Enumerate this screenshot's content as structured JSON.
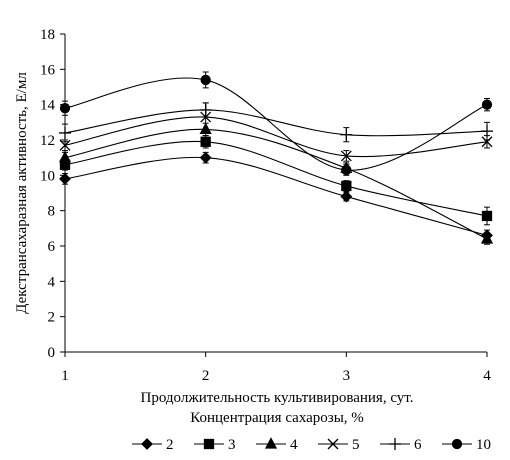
{
  "chart_data": {
    "type": "line",
    "title": "",
    "xlabel": "Продолжительность культивирования, сут.",
    "ylabel": "Декстрансахаразная активность, Е/мл",
    "legend_title": "Концентрация сахарозы, %",
    "legend_position": "bottom",
    "x": [
      1,
      2,
      3,
      4
    ],
    "x_ticks": [
      "1",
      "2",
      "3",
      "4"
    ],
    "xlim": [
      1,
      4
    ],
    "ylim": [
      0,
      18
    ],
    "y_ticks": [
      "0",
      "2",
      "4",
      "6",
      "8",
      "10",
      "12",
      "14",
      "16",
      "18"
    ],
    "grid": false,
    "smooth": true,
    "series": [
      {
        "name": "2",
        "marker": "diamond",
        "values": [
          9.8,
          11.0,
          8.8,
          6.6
        ],
        "errors": [
          0.3,
          0.3,
          0.25,
          0.3
        ]
      },
      {
        "name": "3",
        "marker": "square",
        "values": [
          10.6,
          11.9,
          9.4,
          7.7
        ],
        "errors": [
          0.3,
          0.35,
          0.3,
          0.5
        ]
      },
      {
        "name": "4",
        "marker": "triangle",
        "values": [
          11.0,
          12.6,
          10.4,
          6.4
        ],
        "errors": [
          0.3,
          0.35,
          0.3,
          0.3
        ]
      },
      {
        "name": "5",
        "marker": "x",
        "values": [
          11.7,
          13.3,
          11.1,
          11.9
        ],
        "errors": [
          0.3,
          0.8,
          0.3,
          0.35
        ]
      },
      {
        "name": "6",
        "marker": "plus",
        "values": [
          12.4,
          13.7,
          12.3,
          12.5
        ],
        "errors": [
          0.5,
          0.4,
          0.4,
          0.5
        ]
      },
      {
        "name": "10",
        "marker": "circle",
        "values": [
          13.8,
          15.4,
          10.3,
          14.0
        ],
        "errors": [
          0.4,
          0.45,
          0.3,
          0.35
        ]
      }
    ]
  }
}
